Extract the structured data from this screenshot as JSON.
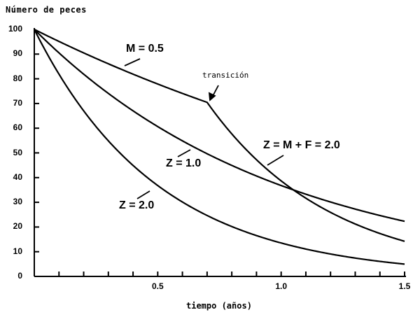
{
  "chart_data": {
    "type": "line",
    "title": "",
    "ylabel": "Número de peces",
    "xlabel": "tiempo (años)",
    "xlim": [
      0,
      1.5
    ],
    "ylim": [
      0,
      100
    ],
    "grid": false,
    "legend": "none (inline annotations)",
    "x_ticks": [
      0.5,
      1.0,
      1.5
    ],
    "x_tick_labels": [
      "0.5",
      "1.0",
      "1.5"
    ],
    "x_minor_step": 0.1,
    "y_ticks": [
      0,
      10,
      20,
      30,
      40,
      50,
      60,
      70,
      80,
      90,
      100
    ],
    "y_tick_labels": [
      "0",
      "10",
      "20",
      "30",
      "40",
      "50",
      "60",
      "70",
      "80",
      "90",
      "100"
    ],
    "x": [
      0,
      0.1,
      0.2,
      0.3,
      0.4,
      0.5,
      0.6,
      0.7,
      0.8,
      0.9,
      1.0,
      1.1,
      1.2,
      1.3,
      1.4,
      1.5
    ],
    "series": [
      {
        "name": "Z = 2.0",
        "values": [
          100,
          81.9,
          67.0,
          54.9,
          44.9,
          36.8,
          30.1,
          24.7,
          20.2,
          16.5,
          13.5,
          11.1,
          9.1,
          7.4,
          6.1,
          5.0
        ]
      },
      {
        "name": "Z = 1.0",
        "values": [
          100,
          90.5,
          81.9,
          74.1,
          67.0,
          60.7,
          54.9,
          49.7,
          44.9,
          40.7,
          36.8,
          33.3,
          30.1,
          27.3,
          24.7,
          22.3
        ]
      },
      {
        "name": "M = 0.5 → Z = M + F = 2.0",
        "values": [
          100,
          95.1,
          90.5,
          86.1,
          81.9,
          77.9,
          74.1,
          70.5,
          57.7,
          47.2,
          38.7,
          31.7,
          25.9,
          21.2,
          17.4,
          14.2
        ]
      }
    ],
    "annotations": [
      {
        "text": "M = 0.5",
        "x": 0.4,
        "y": 88
      },
      {
        "text": "transición",
        "x": 0.72,
        "y": 80,
        "arrow_to": [
          0.7,
          70.5
        ]
      },
      {
        "text": "Z = M + F = 2.0",
        "x": 0.93,
        "y": 52
      },
      {
        "text": "Z = 1.0",
        "x": 0.53,
        "y": 44
      },
      {
        "text": "Z = 2.0",
        "x": 0.32,
        "y": 27
      }
    ]
  },
  "labels": {
    "ylabel": "Número de peces",
    "xlabel": "tiempo (años)",
    "annot_m05": "M = 0.5",
    "annot_transition": "transición",
    "annot_zmf": "Z = M + F = 2.0",
    "annot_z1": "Z = 1.0",
    "annot_z2": "Z = 2.0"
  }
}
